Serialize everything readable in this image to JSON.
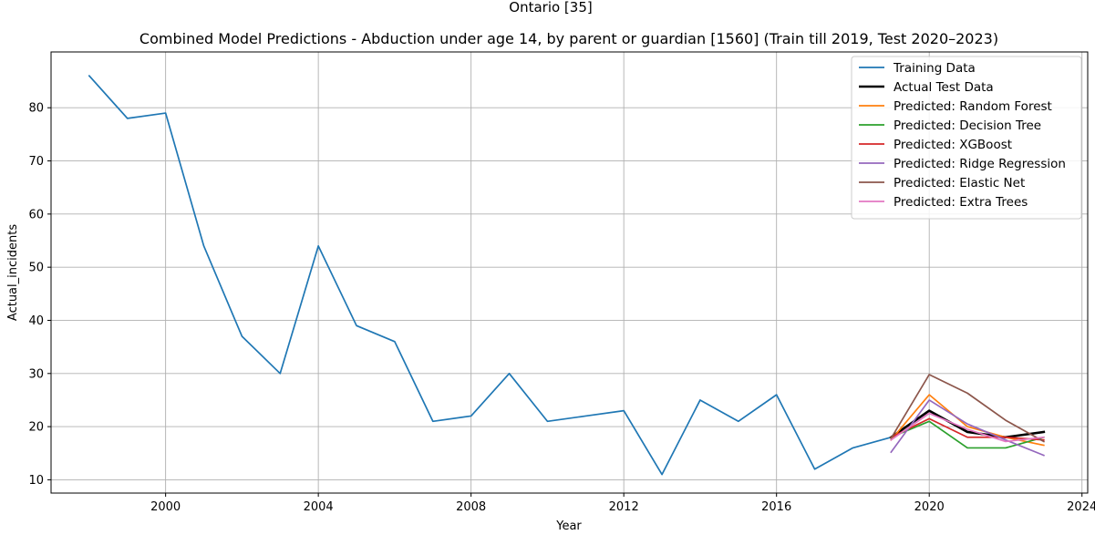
{
  "figure": {
    "suptitle": "Ontario [35]"
  },
  "chart_data": {
    "type": "line",
    "title": "Combined Model Predictions - Abduction under age 14, by parent or guardian [1560] (Train till 2019, Test 2020–2023)",
    "xlabel": "Year",
    "ylabel": "Actual_incidents",
    "xlim": [
      1997.0,
      2024.15
    ],
    "ylim": [
      7.5,
      90.5
    ],
    "xticks": [
      2000,
      2004,
      2008,
      2012,
      2016,
      2020,
      2024
    ],
    "yticks": [
      10,
      20,
      30,
      40,
      50,
      60,
      70,
      80
    ],
    "grid": true,
    "legend_position": "top-right",
    "series": [
      {
        "name": "Training Data",
        "color": "#1f77b4",
        "x": [
          1998,
          1999,
          2000,
          2001,
          2002,
          2003,
          2004,
          2005,
          2006,
          2007,
          2008,
          2009,
          2010,
          2011,
          2012,
          2013,
          2014,
          2015,
          2016,
          2017,
          2018,
          2019
        ],
        "y": [
          86,
          78,
          79,
          54,
          37,
          30,
          54,
          39,
          36,
          21,
          22,
          30,
          21,
          22,
          23,
          11,
          25,
          21,
          26,
          12,
          16,
          18
        ]
      },
      {
        "name": "Actual Test Data",
        "color": "#000000",
        "x": [
          2019,
          2020,
          2021,
          2022,
          2023
        ],
        "y": [
          18,
          23,
          19,
          18,
          19
        ]
      },
      {
        "name": "Predicted: Random Forest",
        "color": "#ff7f0e",
        "x": [
          2019,
          2020,
          2021,
          2022,
          2023
        ],
        "y": [
          17.5,
          26,
          20,
          18,
          16.5
        ]
      },
      {
        "name": "Predicted: Decision Tree",
        "color": "#2ca02c",
        "x": [
          2019,
          2020,
          2021,
          2022,
          2023
        ],
        "y": [
          18,
          21,
          16,
          16,
          18
        ]
      },
      {
        "name": "Predicted: XGBoost",
        "color": "#d62728",
        "x": [
          2019,
          2020,
          2021,
          2022,
          2023
        ],
        "y": [
          18,
          21.5,
          18,
          18,
          17.5
        ]
      },
      {
        "name": "Predicted: Ridge Regression",
        "color": "#9467bd",
        "x": [
          2019,
          2020,
          2021,
          2022,
          2023
        ],
        "y": [
          15.2,
          25,
          20.5,
          17.5,
          14.6
        ]
      },
      {
        "name": "Predicted: Elastic Net",
        "color": "#8c564b",
        "x": [
          2019,
          2020,
          2021,
          2022,
          2023
        ],
        "y": [
          17.8,
          29.8,
          26.3,
          21.2,
          17.2
        ]
      },
      {
        "name": "Predicted: Extra Trees",
        "color": "#e377c2",
        "x": [
          2019,
          2020,
          2021,
          2022,
          2023
        ],
        "y": [
          17.5,
          22.5,
          19.5,
          17.2,
          18
        ]
      }
    ]
  }
}
